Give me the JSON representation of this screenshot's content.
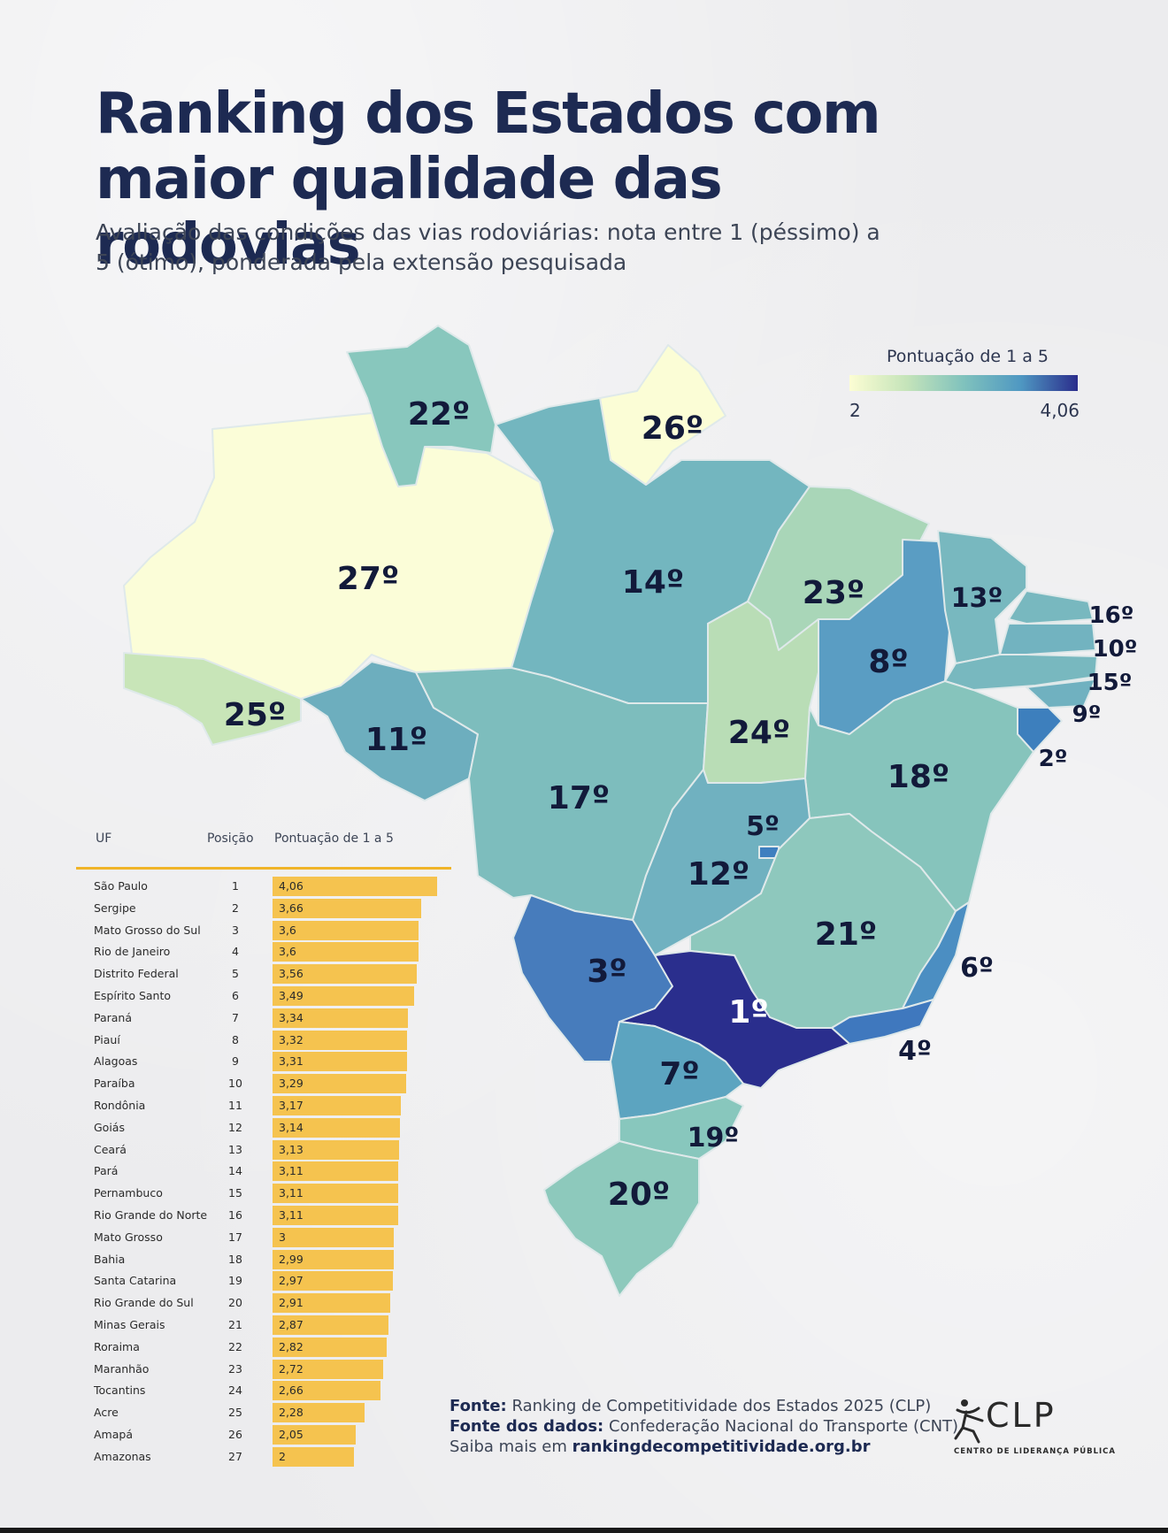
{
  "header": {
    "title": "Ranking dos Estados com maior qualidade das rodovias",
    "subtitle": "Avaliação das condições das vias rodoviárias: nota entre 1 (péssimo) a 5 (ótimo), ponderada pela extensão pesquisada"
  },
  "legend": {
    "title": "Pontuação de 1 a 5",
    "min": "2",
    "max": "4,06",
    "min_value": 2,
    "max_value": 4.06
  },
  "colors": {
    "scale_low": "#fcfdd3",
    "scale_mid": "#80c2bd",
    "scale_high": "#2b2d8c",
    "bar": "#f5c34f",
    "rule": "#f0b429",
    "title": "#1d2a52"
  },
  "map": {
    "labels": {
      "SP": "1º",
      "SE": "2º",
      "MS": "3º",
      "RJ": "4º",
      "DF": "5º",
      "ES": "6º",
      "PR": "7º",
      "PI": "8º",
      "AL": "9º",
      "PB": "10º",
      "RO": "11º",
      "GO": "12º",
      "CE": "13º",
      "PA": "14º",
      "PE": "15º",
      "RN": "16º",
      "MT": "17º",
      "BA": "18º",
      "SC": "19º",
      "RS": "20º",
      "MG": "21º",
      "RR": "22º",
      "MA": "23º",
      "TO": "24º",
      "AC": "25º",
      "AP": "26º",
      "AM": "27º"
    }
  },
  "table": {
    "headers": {
      "uf": "UF",
      "position": "Posição",
      "score": "Pontuação de 1 a 5"
    },
    "rows": [
      {
        "uf": "São Paulo",
        "position": "1",
        "score": "4,06",
        "value": 4.06
      },
      {
        "uf": "Sergipe",
        "position": "2",
        "score": "3,66",
        "value": 3.66
      },
      {
        "uf": "Mato Grosso do Sul",
        "position": "3",
        "score": "3,6",
        "value": 3.6
      },
      {
        "uf": "Rio de Janeiro",
        "position": "4",
        "score": "3,6",
        "value": 3.6
      },
      {
        "uf": "Distrito Federal",
        "position": "5",
        "score": "3,56",
        "value": 3.56
      },
      {
        "uf": "Espírito Santo",
        "position": "6",
        "score": "3,49",
        "value": 3.49
      },
      {
        "uf": "Paraná",
        "position": "7",
        "score": "3,34",
        "value": 3.34
      },
      {
        "uf": "Piauí",
        "position": "8",
        "score": "3,32",
        "value": 3.32
      },
      {
        "uf": "Alagoas",
        "position": "9",
        "score": "3,31",
        "value": 3.31
      },
      {
        "uf": "Paraíba",
        "position": "10",
        "score": "3,29",
        "value": 3.29
      },
      {
        "uf": "Rondônia",
        "position": "11",
        "score": "3,17",
        "value": 3.17
      },
      {
        "uf": "Goiás",
        "position": "12",
        "score": "3,14",
        "value": 3.14
      },
      {
        "uf": "Ceará",
        "position": "13",
        "score": "3,13",
        "value": 3.13
      },
      {
        "uf": "Pará",
        "position": "14",
        "score": "3,11",
        "value": 3.11
      },
      {
        "uf": "Pernambuco",
        "position": "15",
        "score": "3,11",
        "value": 3.11
      },
      {
        "uf": "Rio Grande do Norte",
        "position": "16",
        "score": "3,11",
        "value": 3.11
      },
      {
        "uf": "Mato Grosso",
        "position": "17",
        "score": "3",
        "value": 3.0
      },
      {
        "uf": "Bahia",
        "position": "18",
        "score": "2,99",
        "value": 2.99
      },
      {
        "uf": "Santa Catarina",
        "position": "19",
        "score": "2,97",
        "value": 2.97
      },
      {
        "uf": "Rio Grande do Sul",
        "position": "20",
        "score": "2,91",
        "value": 2.91
      },
      {
        "uf": "Minas Gerais",
        "position": "21",
        "score": "2,87",
        "value": 2.87
      },
      {
        "uf": "Roraima",
        "position": "22",
        "score": "2,82",
        "value": 2.82
      },
      {
        "uf": "Maranhão",
        "position": "23",
        "score": "2,72",
        "value": 2.72
      },
      {
        "uf": "Tocantins",
        "position": "24",
        "score": "2,66",
        "value": 2.66
      },
      {
        "uf": "Acre",
        "position": "25",
        "score": "2,28",
        "value": 2.28
      },
      {
        "uf": "Amapá",
        "position": "26",
        "score": "2,05",
        "value": 2.05
      },
      {
        "uf": "Amazonas",
        "position": "27",
        "score": "2",
        "value": 2.0
      }
    ]
  },
  "footer": {
    "source_label": "Fonte:",
    "source_text": "Ranking de Competitividade dos Estados 2025 (CLP)",
    "data_label": "Fonte dos dados:",
    "data_text": "Confederação Nacional do Transporte (CNT)",
    "more_label": "Saiba mais em",
    "more_link": "rankingdecompetitividade.org.br"
  },
  "logo": {
    "name": "CLP",
    "tagline": "CENTRO DE LIDERANÇA PÚBLICA"
  }
}
